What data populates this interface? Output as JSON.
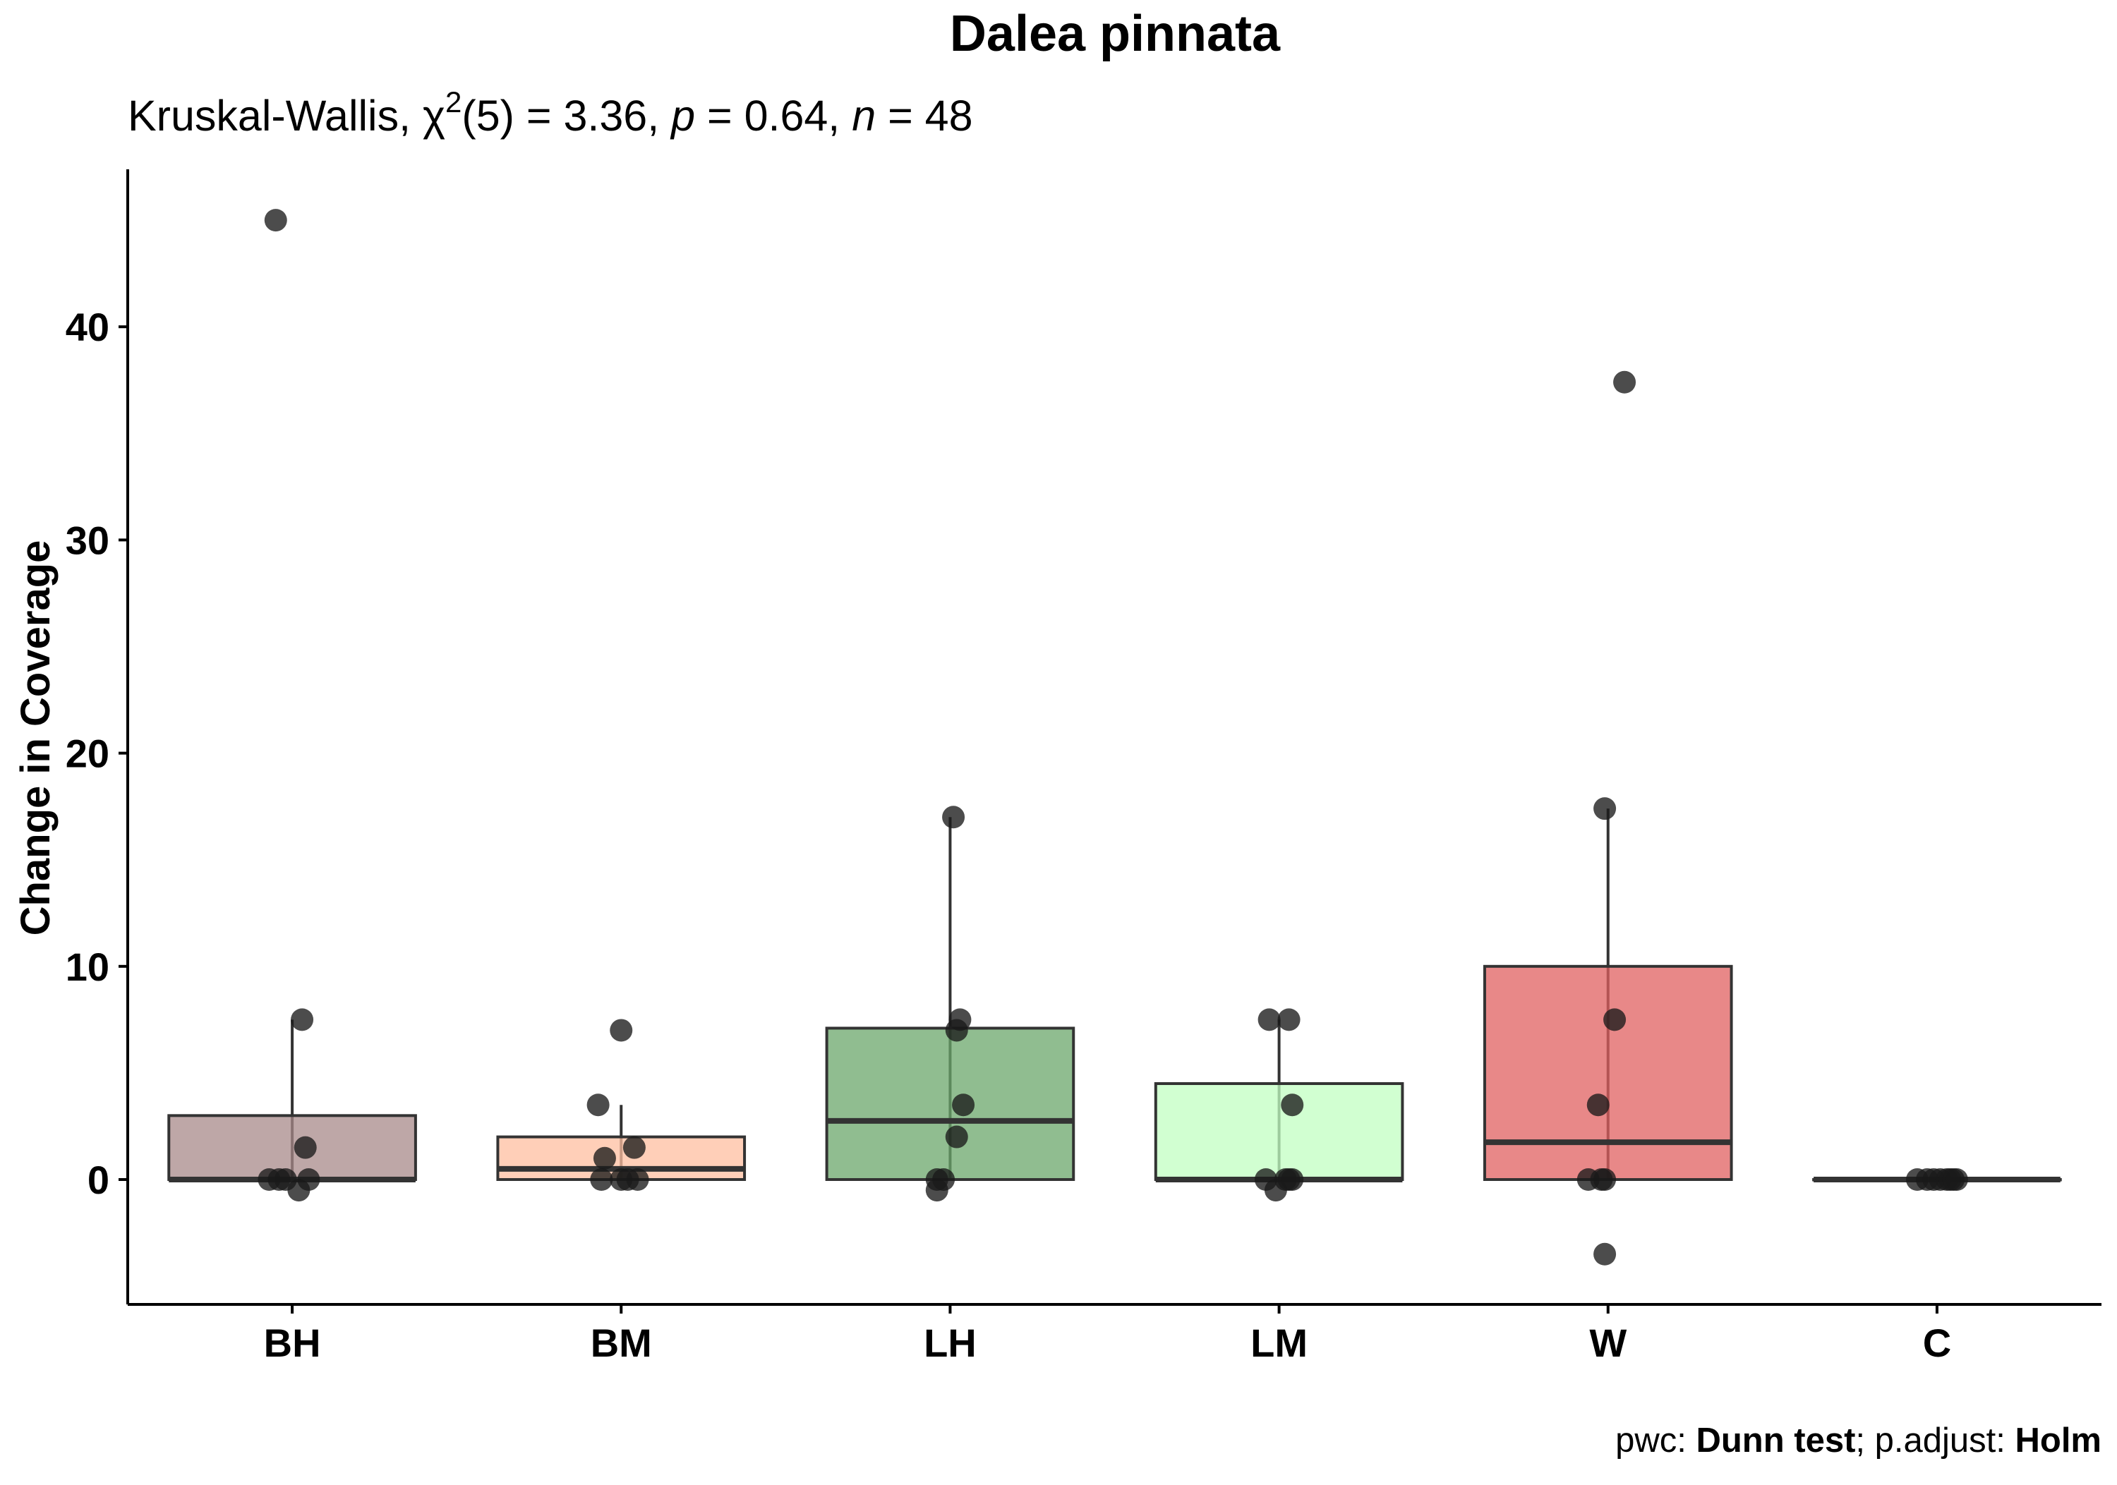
{
  "chart_data": {
    "type": "box",
    "title": "Dalea pinnata",
    "subtitle": {
      "test": "Kruskal-Wallis, ",
      "chi": "χ",
      "chi_sup": "2",
      "df": "(5) = 3.36, ",
      "p_symbol": "p",
      "p_value": " = 0.64, ",
      "n_symbol": "n",
      "n_value": " = 48"
    },
    "caption": {
      "pwc_label": "pwc: ",
      "pwc_method": "Dunn test",
      "sep": "; p.adjust: ",
      "adjust_method": "Holm"
    },
    "xlabel": "",
    "ylabel": "Change in Coverage",
    "ylim": [
      -6,
      47
    ],
    "yticks": [
      0,
      10,
      20,
      30,
      40
    ],
    "ytick_labels": [
      "0",
      "10",
      "20",
      "30",
      "40"
    ],
    "grid": false,
    "legend": "none",
    "categories": [
      "BH",
      "BM",
      "LH",
      "LM",
      "W",
      "C"
    ],
    "boxes": [
      {
        "group": "BH",
        "color": "#A88A8A",
        "q1": 0,
        "median": 0,
        "q3": 3,
        "whisker_low": 0,
        "whisker_high": 7.5
      },
      {
        "group": "BM",
        "color": "#FFBFA0",
        "q1": 0,
        "median": 0.5,
        "q3": 2,
        "whisker_low": 0,
        "whisker_high": 3.5
      },
      {
        "group": "LH",
        "color": "#6BA76B",
        "q1": 0,
        "median": 2.75,
        "q3": 7.1,
        "whisker_low": 0,
        "whisker_high": 17
      },
      {
        "group": "LM",
        "color": "#C2FFC2",
        "q1": 0,
        "median": 0,
        "q3": 4.5,
        "whisker_low": 0,
        "whisker_high": 7.5
      },
      {
        "group": "W",
        "color": "#E06060",
        "q1": 0,
        "median": 1.75,
        "q3": 10,
        "whisker_low": 0,
        "whisker_high": 17.4
      },
      {
        "group": "C",
        "color": "#3C3C3C",
        "q1": 0,
        "median": 0,
        "q3": 0,
        "whisker_low": 0,
        "whisker_high": 0
      }
    ],
    "points": [
      {
        "group": "BH",
        "jitter": -0.05,
        "y": 45
      },
      {
        "group": "BH",
        "jitter": 0.03,
        "y": 7.5
      },
      {
        "group": "BH",
        "jitter": 0.04,
        "y": 1.5
      },
      {
        "group": "BH",
        "jitter": -0.07,
        "y": 0
      },
      {
        "group": "BH",
        "jitter": -0.02,
        "y": 0
      },
      {
        "group": "BH",
        "jitter": 0.05,
        "y": 0
      },
      {
        "group": "BH",
        "jitter": 0.02,
        "y": -0.5
      },
      {
        "group": "BH",
        "jitter": -0.04,
        "y": 0
      },
      {
        "group": "BM",
        "jitter": 0.0,
        "y": 7
      },
      {
        "group": "BM",
        "jitter": -0.07,
        "y": 3.5
      },
      {
        "group": "BM",
        "jitter": 0.04,
        "y": 1.5
      },
      {
        "group": "BM",
        "jitter": -0.05,
        "y": 1
      },
      {
        "group": "BM",
        "jitter": -0.06,
        "y": 0
      },
      {
        "group": "BM",
        "jitter": 0.0,
        "y": 0
      },
      {
        "group": "BM",
        "jitter": 0.05,
        "y": 0
      },
      {
        "group": "BM",
        "jitter": 0.02,
        "y": 0
      },
      {
        "group": "LH",
        "jitter": 0.01,
        "y": 17
      },
      {
        "group": "LH",
        "jitter": 0.03,
        "y": 7.5
      },
      {
        "group": "LH",
        "jitter": 0.02,
        "y": 7
      },
      {
        "group": "LH",
        "jitter": 0.04,
        "y": 3.5
      },
      {
        "group": "LH",
        "jitter": 0.02,
        "y": 2
      },
      {
        "group": "LH",
        "jitter": -0.04,
        "y": 0
      },
      {
        "group": "LH",
        "jitter": -0.02,
        "y": 0
      },
      {
        "group": "LH",
        "jitter": -0.04,
        "y": -0.5
      },
      {
        "group": "LM",
        "jitter": -0.03,
        "y": 7.5
      },
      {
        "group": "LM",
        "jitter": 0.03,
        "y": 7.5
      },
      {
        "group": "LM",
        "jitter": 0.04,
        "y": 3.5
      },
      {
        "group": "LM",
        "jitter": -0.04,
        "y": 0
      },
      {
        "group": "LM",
        "jitter": 0.02,
        "y": 0
      },
      {
        "group": "LM",
        "jitter": 0.04,
        "y": 0
      },
      {
        "group": "LM",
        "jitter": 0.03,
        "y": 0
      },
      {
        "group": "LM",
        "jitter": -0.01,
        "y": -0.5
      },
      {
        "group": "W",
        "jitter": 0.05,
        "y": 37.4
      },
      {
        "group": "W",
        "jitter": -0.01,
        "y": 17.4
      },
      {
        "group": "W",
        "jitter": 0.02,
        "y": 7.5
      },
      {
        "group": "W",
        "jitter": -0.03,
        "y": 3.5
      },
      {
        "group": "W",
        "jitter": -0.06,
        "y": 0
      },
      {
        "group": "W",
        "jitter": -0.02,
        "y": 0
      },
      {
        "group": "W",
        "jitter": -0.01,
        "y": 0
      },
      {
        "group": "W",
        "jitter": -0.01,
        "y": -3.5
      },
      {
        "group": "C",
        "jitter": -0.06,
        "y": 0
      },
      {
        "group": "C",
        "jitter": -0.03,
        "y": 0
      },
      {
        "group": "C",
        "jitter": -0.01,
        "y": 0
      },
      {
        "group": "C",
        "jitter": 0.01,
        "y": 0
      },
      {
        "group": "C",
        "jitter": 0.03,
        "y": 0
      },
      {
        "group": "C",
        "jitter": 0.04,
        "y": 0
      },
      {
        "group": "C",
        "jitter": 0.05,
        "y": 0
      },
      {
        "group": "C",
        "jitter": 0.06,
        "y": 0
      }
    ],
    "point_color": "#1A1A1A"
  }
}
